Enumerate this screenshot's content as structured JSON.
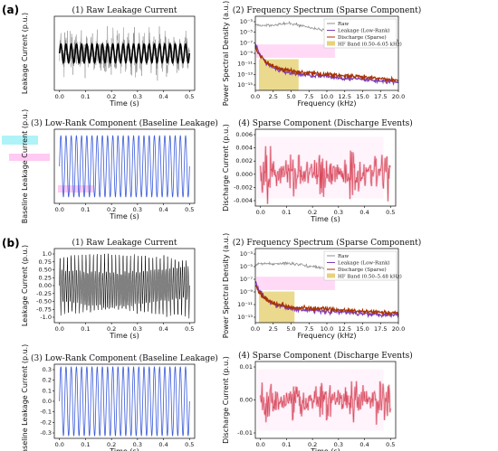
{
  "panel_labels": [
    "(a)",
    "(b)"
  ],
  "colors": {
    "raw": "#000000",
    "raw_gray": "#8c8c8c",
    "low_rank": "#3b5bdb",
    "low_rank_spec": "#7d3cb5",
    "sparse": "#d8485b",
    "sparse_spec": "#a83200",
    "hf_band": "#e8d27a",
    "highlight": "#ff66dd",
    "highlight_cyan": "#33e0ee"
  },
  "chart_data": [
    {
      "id": "a1",
      "type": "line",
      "title": "(1) Raw Leakage Current",
      "xlabel": "Time (s)",
      "ylabel": "Leakage Current (p.u.)",
      "xlim": [
        -0.02,
        0.52
      ],
      "ylim": [
        -0.2,
        0.2
      ],
      "xticks": [
        "0.0",
        "0.1",
        "0.2",
        "0.3",
        "0.4",
        "0.5"
      ],
      "yticks": [],
      "series": [
        {
          "values_desc": "noisy 50 Hz",
          "amplitude": 0.05,
          "cycles": 25,
          "noise": 0.08
        }
      ]
    },
    {
      "id": "a2",
      "type": "line",
      "title": "(2) Frequency Spectrum (Sparse Component)",
      "xlabel": "Frequency (kHz)",
      "ylabel": "Power Spectral Density (a.u.)",
      "log_y": true,
      "xlim": [
        0,
        20
      ],
      "ylim_exp": [
        -16,
        -3
      ],
      "xticks": [
        "0.0",
        "2.5",
        "5.0",
        "7.5",
        "10.0",
        "12.5",
        "15.0",
        "17.5",
        "20.0"
      ],
      "yticks": [
        "10⁻³",
        "10⁻⁵",
        "10⁻⁷",
        "10⁻⁹",
        "10⁻¹¹",
        "10⁻¹³",
        "10⁻¹⁵"
      ],
      "band": [
        0.5,
        6.05
      ],
      "legend": [
        "Raw",
        "Leakage (Low-Rank)",
        "Discharge (Sparse)",
        "HF Band (0.50–6.05 kHz)"
      ],
      "legend_loc": "upper right",
      "series": [
        {
          "name": "Raw",
          "log_start": -4.6,
          "log_mid": -4.3,
          "log_end": -7.0
        },
        {
          "name": "Leakage (Low-Rank)",
          "log_start": -8.0,
          "log_mid": -12.6,
          "log_end": -14.6
        },
        {
          "name": "Discharge (Sparse)",
          "log_start": -8.5,
          "log_mid": -12.2,
          "log_end": -14.2
        }
      ]
    },
    {
      "id": "a3",
      "type": "line",
      "title": "(3) Low-Rank Component (Baseline Leakage)",
      "xlabel": "Time (s)",
      "ylabel": "Baseline Leakage Current (p.u.)",
      "xlim": [
        -0.02,
        0.52
      ],
      "ylim": [
        -0.3,
        0.3
      ],
      "xticks": [
        "0.0",
        "0.1",
        "0.2",
        "0.3",
        "0.4",
        "0.5"
      ],
      "yticks": [],
      "series": [
        {
          "name": "Low-Rank",
          "amplitude": 0.25,
          "cycles": 25
        }
      ]
    },
    {
      "id": "a4",
      "type": "line",
      "title": "(4) Sparse Component (Discharge Events)",
      "xlabel": "Time (s)",
      "ylabel": "Discharge Current (p.u.)",
      "xlim": [
        -0.02,
        0.52
      ],
      "ylim": [
        -0.005,
        0.007
      ],
      "xticks": [
        "0.0",
        "0.1",
        "0.2",
        "0.3",
        "0.4",
        "0.5"
      ],
      "yticks": [
        "0.006",
        "0.004",
        "0.002",
        "0.000",
        "-0.002",
        "-0.004"
      ],
      "series": [
        {
          "name": "Sparse",
          "amplitude": 0.0035
        }
      ]
    },
    {
      "id": "b1",
      "type": "line",
      "title": "(1) Raw Leakage Current",
      "xlabel": "Time (s)",
      "ylabel": "Leakage Current (p.u.)",
      "xlim": [
        -0.02,
        0.52
      ],
      "ylim": [
        -1.1,
        1.1
      ],
      "xticks": [
        "0.0",
        "0.1",
        "0.2",
        "0.3",
        "0.4",
        "0.5"
      ],
      "yticks": [
        "1.0",
        "0.75",
        "0.50",
        "0.25",
        "0.00",
        "-0.25",
        "-0.50",
        "-0.75",
        "-1.0"
      ],
      "series": [
        {
          "values_desc": "dense oscillation",
          "amplitude": 0.95,
          "cycles": 70
        }
      ]
    },
    {
      "id": "b2",
      "type": "line",
      "title": "(2) Frequency Spectrum (Sparse Component)",
      "xlabel": "Frequency (kHz)",
      "ylabel": "Power Spectral Density (a.u.)",
      "log_y": true,
      "xlim": [
        0,
        20
      ],
      "ylim_exp": [
        -14,
        -2
      ],
      "xticks": [
        "0.0",
        "2.5",
        "5.0",
        "7.5",
        "10.0",
        "12.5",
        "15.0",
        "17.5",
        "20.0"
      ],
      "yticks": [
        "10⁻³",
        "10⁻⁵",
        "10⁻⁷",
        "10⁻⁹",
        "10⁻¹¹",
        "10⁻¹³"
      ],
      "band": [
        0.5,
        5.48
      ],
      "legend": [
        "Raw",
        "Leakage (Low-Rank)",
        "Discharge (Sparse)",
        "HF Band (0.50–5.48 kHz)"
      ],
      "legend_loc": "upper right",
      "series": [
        {
          "name": "Raw",
          "log_start": -4.5,
          "log_mid": -4.4,
          "log_end": -6.6
        },
        {
          "name": "Leakage (Low-Rank)",
          "log_start": -7.5,
          "log_mid": -11.5,
          "log_end": -12.8
        },
        {
          "name": "Discharge (Sparse)",
          "log_start": -8.0,
          "log_mid": -11.2,
          "log_end": -12.5
        }
      ]
    },
    {
      "id": "b3",
      "type": "line",
      "title": "(3) Low-Rank Component (Baseline Leakage)",
      "xlabel": "Time (s)",
      "ylabel": "Baseline Leakage Current (p.u.)",
      "xlim": [
        -0.02,
        0.52
      ],
      "ylim": [
        -0.33,
        0.33
      ],
      "xticks": [
        "0.0",
        "0.1",
        "0.2",
        "0.3",
        "0.4",
        "0.5"
      ],
      "yticks": [
        "0.3",
        "0.2",
        "0.1",
        "0.0",
        "-0.1",
        "-0.2",
        "-0.3"
      ],
      "series": [
        {
          "name": "Low-Rank",
          "amplitude": 0.31,
          "cycles": 25
        }
      ]
    },
    {
      "id": "b4",
      "type": "line",
      "title": "(4) Sparse Component (Discharge Events)",
      "xlabel": "Time (s)",
      "ylabel": "Discharge Current (p.u.)",
      "xlim": [
        -0.02,
        0.52
      ],
      "ylim": [
        -0.016,
        0.016
      ],
      "xticks": [
        "0.0",
        "0.1",
        "0.2",
        "0.3",
        "0.4",
        "0.5"
      ],
      "yticks": [
        "0.01",
        "0.00",
        "-0.01"
      ],
      "series": [
        {
          "name": "Sparse",
          "amplitude": 0.008
        }
      ]
    }
  ]
}
